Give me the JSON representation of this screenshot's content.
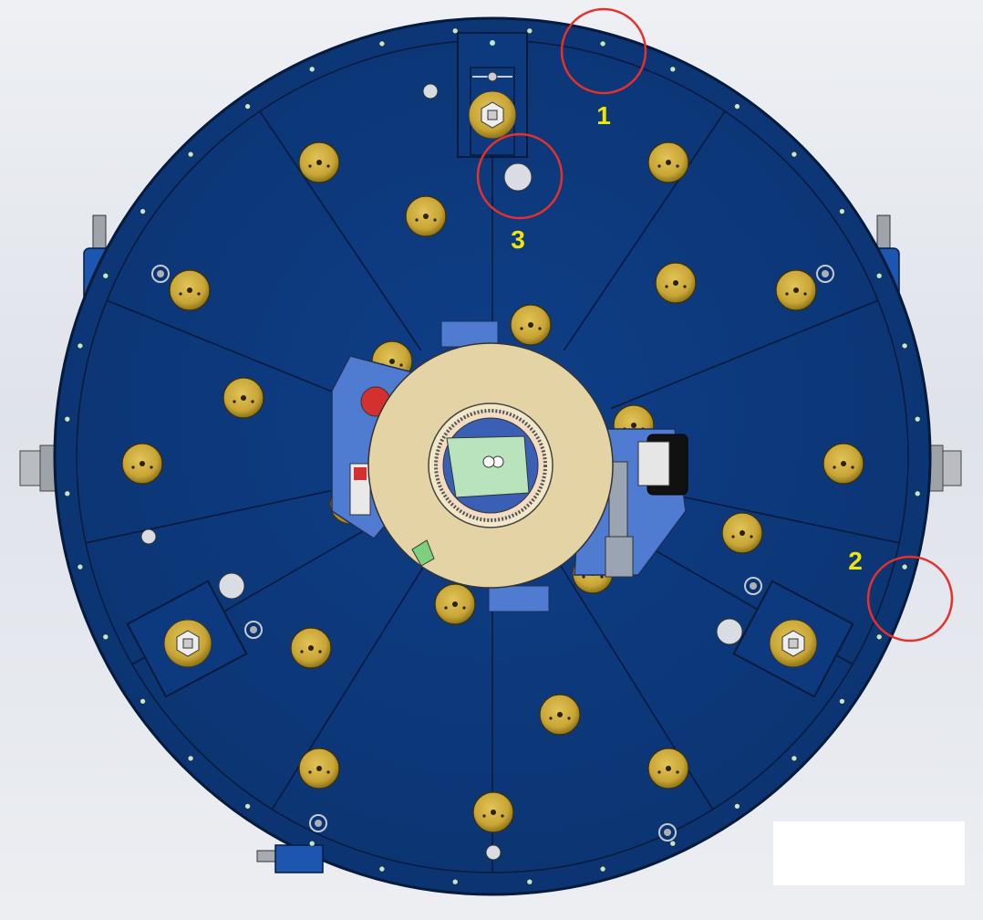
{
  "diagram": {
    "colors": {
      "plate": "#0d3a7e",
      "plate_edge": "#061a3c",
      "plate_line": "#07204a",
      "pad": "#c8a535",
      "pad_dark": "#6d5812",
      "center_disk": "#e4d3a4",
      "marker_ring": "#e8302a",
      "label": "#f2e600",
      "bracket": "#3f6ab8",
      "hole": "#d9dde3",
      "dot": "#bfe8c8"
    },
    "callouts": [
      {
        "label": "1"
      },
      {
        "label": "2"
      },
      {
        "label": "3"
      }
    ]
  }
}
